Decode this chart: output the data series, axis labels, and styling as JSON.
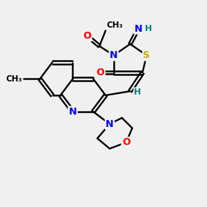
{
  "bg_color": "#f0f0f0",
  "atom_colors": {
    "N": "#0000ff",
    "O": "#ff0000",
    "S": "#ccaa00",
    "C": "#000000",
    "H": "#008080"
  },
  "bond_color": "#000000",
  "title": "",
  "figsize": [
    3.0,
    3.0
  ],
  "dpi": 100
}
